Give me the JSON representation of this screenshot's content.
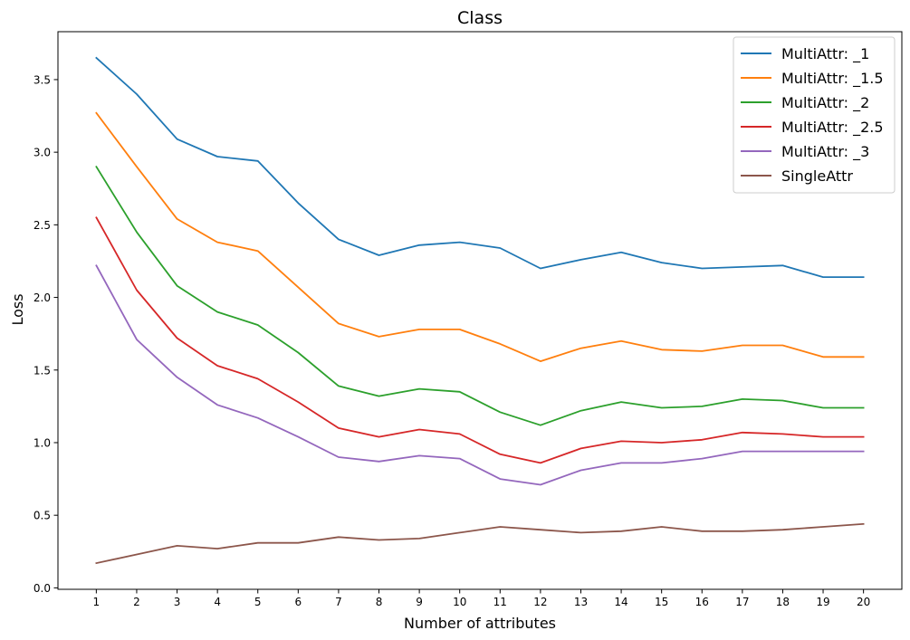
{
  "chart_data": {
    "type": "line",
    "title": "Class",
    "xlabel": "Number of attributes",
    "ylabel": "Loss",
    "x": [
      1,
      2,
      3,
      4,
      5,
      6,
      7,
      8,
      9,
      10,
      11,
      12,
      13,
      14,
      15,
      16,
      17,
      18,
      19,
      20
    ],
    "xlim": [
      0.05,
      20.95
    ],
    "ylim": [
      -0.01,
      3.83
    ],
    "yticks": [
      0.0,
      0.5,
      1.0,
      1.5,
      2.0,
      2.5,
      3.0,
      3.5
    ],
    "ytick_labels": [
      "0.0",
      "0.5",
      "1.0",
      "1.5",
      "2.0",
      "2.5",
      "3.0",
      "3.5"
    ],
    "xtick_labels": [
      "1",
      "2",
      "3",
      "4",
      "5",
      "6",
      "7",
      "8",
      "9",
      "10",
      "11",
      "12",
      "13",
      "14",
      "15",
      "16",
      "17",
      "18",
      "19",
      "20"
    ],
    "grid": false,
    "legend_position": "top-right",
    "series": [
      {
        "name": "MultiAttr: _1",
        "color": "#1f77b4",
        "values": [
          3.65,
          3.4,
          3.09,
          2.97,
          2.94,
          2.65,
          2.4,
          2.29,
          2.36,
          2.38,
          2.34,
          2.2,
          2.26,
          2.31,
          2.24,
          2.2,
          2.21,
          2.22,
          2.14,
          2.14
        ]
      },
      {
        "name": "MultiAttr: _1.5",
        "color": "#ff7f0e",
        "values": [
          3.27,
          2.9,
          2.54,
          2.38,
          2.32,
          2.07,
          1.82,
          1.73,
          1.78,
          1.78,
          1.68,
          1.56,
          1.65,
          1.7,
          1.64,
          1.63,
          1.67,
          1.67,
          1.59,
          1.59
        ]
      },
      {
        "name": "MultiAttr: _2",
        "color": "#2ca02c",
        "values": [
          2.9,
          2.45,
          2.08,
          1.9,
          1.81,
          1.62,
          1.39,
          1.32,
          1.37,
          1.35,
          1.21,
          1.12,
          1.22,
          1.28,
          1.24,
          1.25,
          1.3,
          1.29,
          1.24,
          1.24
        ]
      },
      {
        "name": "MultiAttr: _2.5",
        "color": "#d62728",
        "values": [
          2.55,
          2.05,
          1.72,
          1.53,
          1.44,
          1.28,
          1.1,
          1.04,
          1.09,
          1.06,
          0.92,
          0.86,
          0.96,
          1.01,
          1.0,
          1.02,
          1.07,
          1.06,
          1.04,
          1.04
        ]
      },
      {
        "name": "MultiAttr: _3",
        "color": "#9467bd",
        "values": [
          2.22,
          1.71,
          1.45,
          1.26,
          1.17,
          1.04,
          0.9,
          0.87,
          0.91,
          0.89,
          0.75,
          0.71,
          0.81,
          0.86,
          0.86,
          0.89,
          0.94,
          0.94,
          0.94,
          0.94
        ]
      },
      {
        "name": "SingleAttr",
        "color": "#8c564b",
        "values": [
          0.17,
          0.23,
          0.29,
          0.27,
          0.31,
          0.31,
          0.35,
          0.33,
          0.34,
          0.38,
          0.42,
          0.4,
          0.38,
          0.39,
          0.42,
          0.39,
          0.39,
          0.4,
          0.42,
          0.44
        ]
      }
    ]
  }
}
